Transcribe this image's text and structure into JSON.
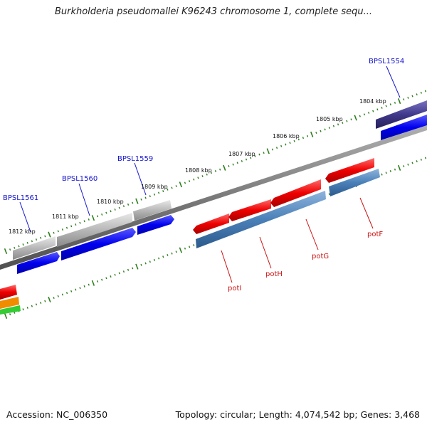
{
  "title": "Burkholderia pseudomallei K96243 chromosome 1, complete sequ...",
  "footer": {
    "accession": "Accession: NC_006350",
    "summary": "Topology: circular; Length: 4,074,542 bp; Genes: 3,468"
  },
  "scale_labels": [
    "1812 kbp",
    "1811 kbp",
    "1810 kbp",
    "1809 kbp",
    "1808 kbp",
    "1807 kbp",
    "1806 kbp",
    "1805 kbp",
    "1804 kbp"
  ],
  "gene_labels": {
    "upper": [
      "BPSL1561",
      "BPSL1560",
      "BPSL1559",
      "BPSL1554"
    ],
    "lower": [
      "potI",
      "potH",
      "potG",
      "potF"
    ]
  },
  "colors": {
    "backbone": "#808080",
    "tick": "#2e7d1e",
    "gene_label_blue": "#1515cc",
    "gene_label_red": "#cc1111",
    "cds_blue": "#0000ee",
    "cds_gray": "#b8b8b8",
    "cds_red": "#ee0000",
    "cds_steel": "#4a80b8",
    "cds_navy": "#40388a"
  }
}
